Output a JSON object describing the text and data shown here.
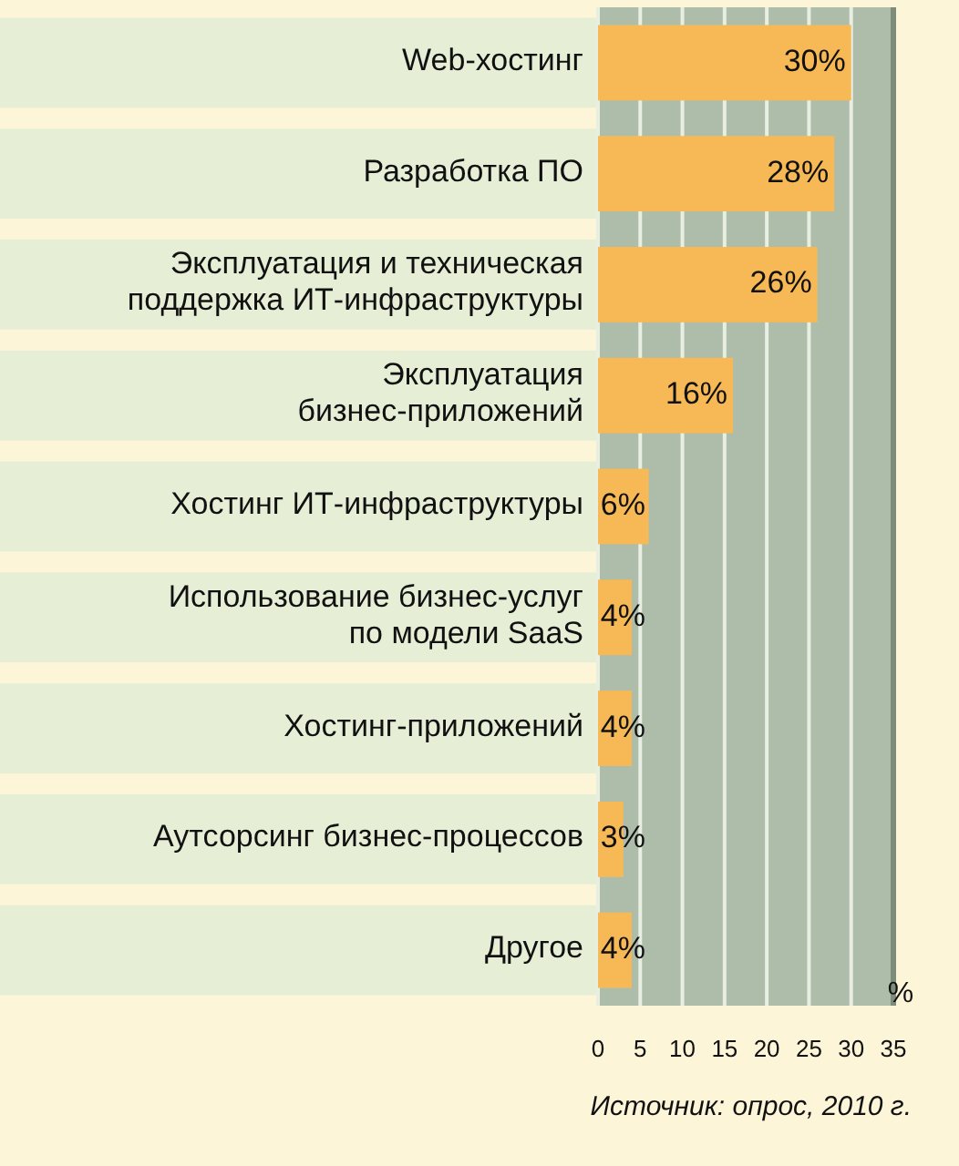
{
  "chart_data": {
    "type": "bar",
    "orientation": "horizontal",
    "categories": [
      "Web-хостинг",
      "Разработка ПО",
      "Эксплуатация и техническая\nподдержка ИТ-инфраструктуры",
      "Эксплуатация\nбизнес-приложений",
      "Хостинг ИТ-инфраструктуры",
      "Использование бизнес-услуг\nпо модели SaaS",
      "Хостинг-приложений",
      "Аутсорсинг бизнес-процессов",
      "Другое"
    ],
    "values": [
      30,
      28,
      26,
      16,
      6,
      4,
      4,
      3,
      4
    ],
    "value_labels": [
      "30%",
      "28%",
      "26%",
      "16%",
      "6%",
      "4%",
      "4%",
      "3%",
      "4%"
    ],
    "color": "#f7b955",
    "xlabel": "%",
    "xlim": [
      0,
      35
    ],
    "xticks": [
      0,
      5,
      10,
      15,
      20,
      25,
      30,
      35
    ],
    "grid": "x",
    "annotations": [
      "Источник: опрос, 2010 г."
    ]
  }
}
